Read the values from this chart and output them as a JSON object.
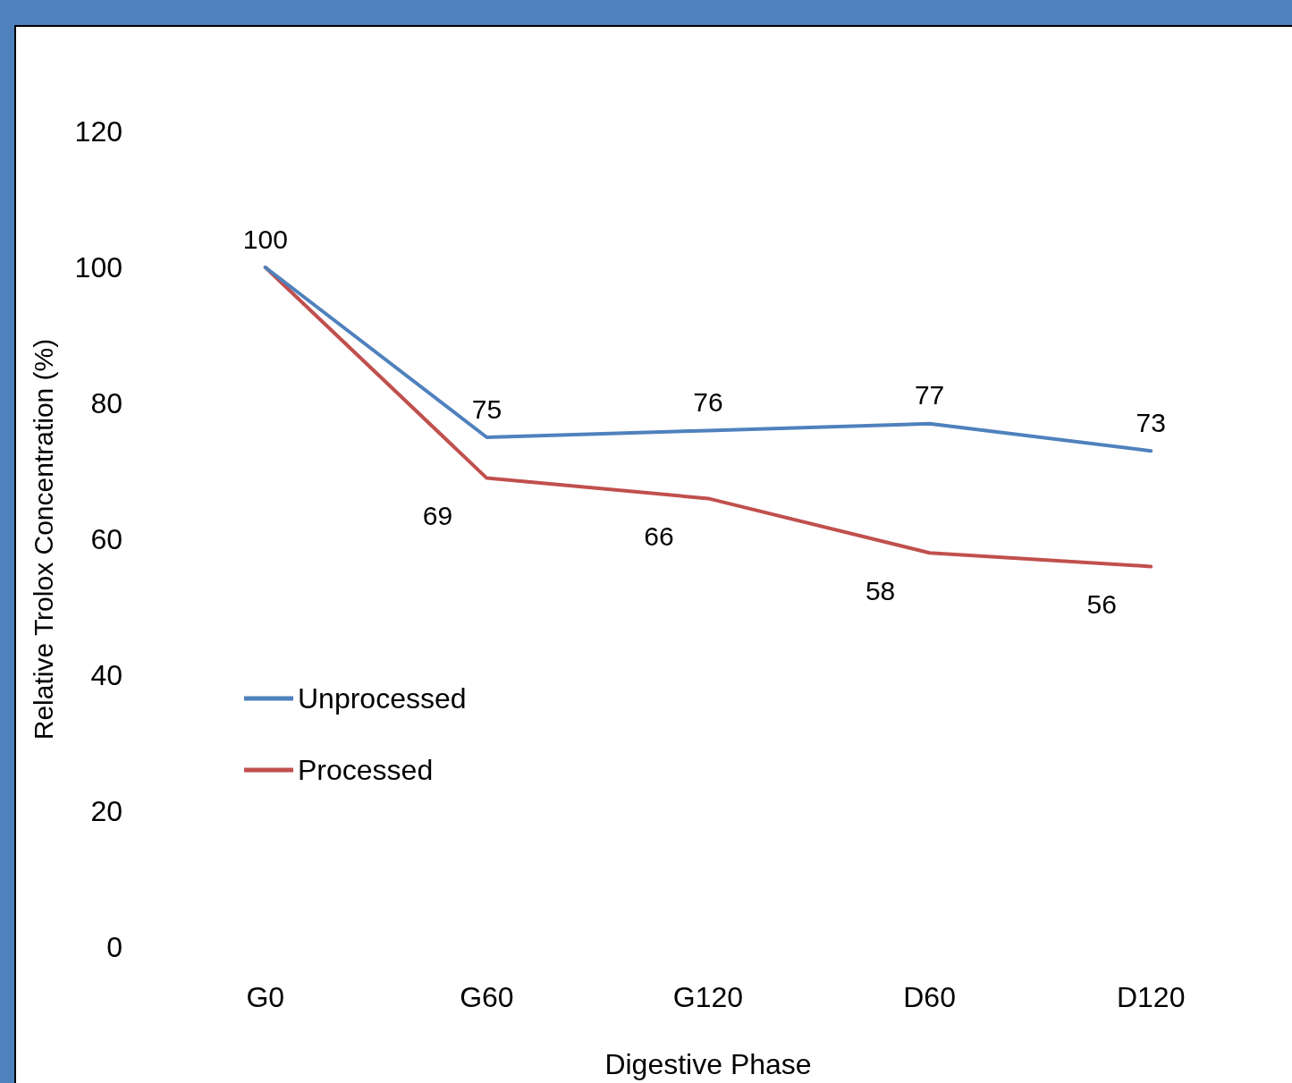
{
  "chart_data": {
    "type": "line",
    "xlabel": "Digestive Phase",
    "ylabel": "Relative Trolox Concentration (%)",
    "categories": [
      "G0",
      "G60",
      "G120",
      "D60",
      "D120"
    ],
    "series": [
      {
        "name": "Unprocessed",
        "color": "#4f81bd",
        "values": [
          100,
          75,
          76,
          77,
          73
        ],
        "value_labels": [
          "100",
          "75",
          "76",
          "77",
          "73"
        ]
      },
      {
        "name": "Processed",
        "color": "#c0504d",
        "values": [
          100,
          69,
          66,
          58,
          56
        ],
        "value_labels": [
          null,
          "69",
          "66",
          "58",
          "56"
        ]
      }
    ],
    "ylim": [
      0,
      120
    ],
    "yticks": [
      0,
      20,
      40,
      60,
      80,
      100,
      120
    ],
    "grid": false,
    "legend": "left",
    "marker": "none",
    "line_style": "solid"
  }
}
